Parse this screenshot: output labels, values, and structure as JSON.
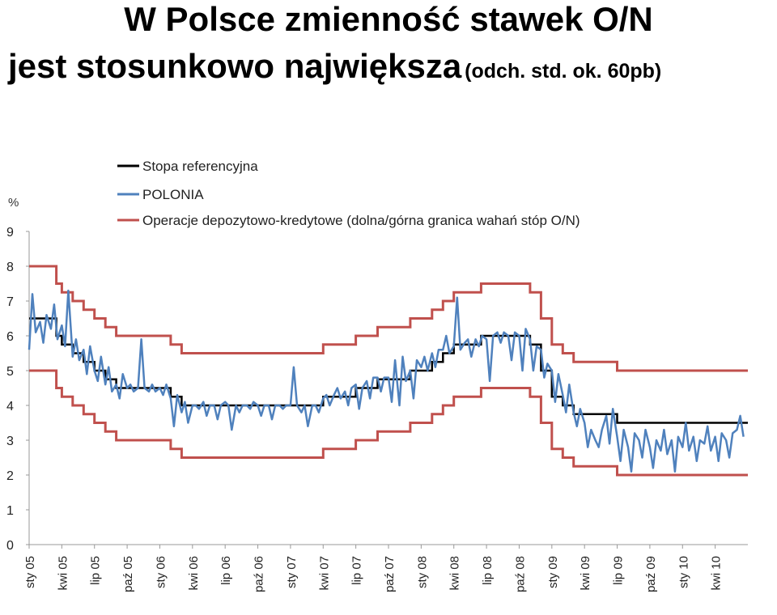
{
  "title": {
    "line1": "W Polsce zmienność stawek O/N",
    "line2": "jest stosunkowo największa",
    "line2_sub": "(odch. std. ok. 60pb)"
  },
  "colors": {
    "reference": "#000000",
    "polonia": "#4f81bd",
    "corridor": "#c0504d"
  },
  "chart_data": {
    "type": "line",
    "ylabel": "%",
    "ylim": [
      0,
      9
    ],
    "yticks": [
      "0",
      "1",
      "2",
      "3",
      "4",
      "5",
      "6",
      "7",
      "8",
      "9"
    ],
    "xticks": [
      "sty 05",
      "kwi 05",
      "lip 05",
      "paź 05",
      "sty 06",
      "kwi 06",
      "lip 06",
      "paź 06",
      "sty 07",
      "kwi 07",
      "lip 07",
      "paź 07",
      "sty 08",
      "kwi 08",
      "lip 08",
      "paź 08",
      "sty 09",
      "kwi 09",
      "lip 09",
      "paź 09",
      "sty 10",
      "kwi 10"
    ],
    "xtick_index": [
      0,
      3,
      6,
      9,
      12,
      15,
      18,
      21,
      24,
      27,
      30,
      33,
      36,
      39,
      42,
      45,
      48,
      51,
      54,
      57,
      60,
      63
    ],
    "xrange_months": [
      0,
      66
    ],
    "legend_position": "top",
    "series": [
      {
        "name": "Stopa referencyjna",
        "color_key": "reference",
        "style": "step",
        "points": [
          [
            0,
            6.5
          ],
          [
            2.5,
            6.0
          ],
          [
            3.0,
            5.75
          ],
          [
            4.0,
            5.5
          ],
          [
            5.0,
            5.25
          ],
          [
            6.0,
            5.0
          ],
          [
            7.0,
            4.75
          ],
          [
            8.0,
            4.5
          ],
          [
            13.0,
            4.25
          ],
          [
            14.0,
            4.0
          ],
          [
            27.0,
            4.25
          ],
          [
            30.0,
            4.5
          ],
          [
            32.0,
            4.75
          ],
          [
            35.0,
            5.0
          ],
          [
            37.0,
            5.25
          ],
          [
            38.0,
            5.5
          ],
          [
            39.0,
            5.75
          ],
          [
            41.5,
            6.0
          ],
          [
            46.0,
            5.75
          ],
          [
            47.0,
            5.0
          ],
          [
            48.0,
            4.25
          ],
          [
            49.0,
            4.0
          ],
          [
            50.0,
            3.75
          ],
          [
            54.0,
            3.5
          ],
          [
            66.0,
            3.5
          ]
        ]
      },
      {
        "name": "POLONIA",
        "color_key": "polonia",
        "style": "line",
        "points": [
          [
            0.0,
            5.6
          ],
          [
            0.3,
            7.2
          ],
          [
            0.6,
            6.1
          ],
          [
            1.0,
            6.4
          ],
          [
            1.3,
            5.8
          ],
          [
            1.6,
            6.6
          ],
          [
            2.0,
            6.2
          ],
          [
            2.3,
            6.9
          ],
          [
            2.6,
            5.9
          ],
          [
            3.0,
            6.3
          ],
          [
            3.3,
            5.7
          ],
          [
            3.6,
            7.3
          ],
          [
            4.0,
            5.4
          ],
          [
            4.3,
            5.9
          ],
          [
            4.6,
            5.3
          ],
          [
            5.0,
            5.6
          ],
          [
            5.3,
            4.9
          ],
          [
            5.6,
            5.7
          ],
          [
            6.0,
            5.0
          ],
          [
            6.3,
            4.7
          ],
          [
            6.6,
            5.4
          ],
          [
            7.0,
            4.6
          ],
          [
            7.3,
            5.1
          ],
          [
            7.6,
            4.4
          ],
          [
            8.0,
            4.6
          ],
          [
            8.3,
            4.2
          ],
          [
            8.6,
            4.9
          ],
          [
            9.0,
            4.5
          ],
          [
            9.3,
            4.6
          ],
          [
            9.6,
            4.4
          ],
          [
            10.0,
            4.5
          ],
          [
            10.3,
            5.9
          ],
          [
            10.6,
            4.5
          ],
          [
            11.0,
            4.4
          ],
          [
            11.3,
            4.6
          ],
          [
            11.6,
            4.4
          ],
          [
            12.0,
            4.5
          ],
          [
            12.3,
            4.3
          ],
          [
            12.6,
            4.6
          ],
          [
            13.0,
            4.2
          ],
          [
            13.3,
            3.4
          ],
          [
            13.6,
            4.3
          ],
          [
            14.0,
            3.8
          ],
          [
            14.3,
            4.1
          ],
          [
            14.6,
            3.5
          ],
          [
            15.0,
            4.0
          ],
          [
            15.3,
            4.0
          ],
          [
            15.6,
            3.9
          ],
          [
            16.0,
            4.1
          ],
          [
            16.3,
            3.7
          ],
          [
            16.6,
            4.0
          ],
          [
            17.0,
            4.0
          ],
          [
            17.3,
            3.6
          ],
          [
            17.6,
            4.0
          ],
          [
            18.0,
            4.1
          ],
          [
            18.3,
            4.0
          ],
          [
            18.6,
            3.3
          ],
          [
            19.0,
            4.0
          ],
          [
            19.3,
            3.8
          ],
          [
            19.6,
            4.0
          ],
          [
            20.0,
            4.0
          ],
          [
            20.3,
            3.9
          ],
          [
            20.6,
            4.1
          ],
          [
            21.0,
            4.0
          ],
          [
            21.3,
            3.7
          ],
          [
            21.6,
            4.0
          ],
          [
            22.0,
            4.0
          ],
          [
            22.3,
            3.6
          ],
          [
            22.6,
            4.0
          ],
          [
            23.0,
            4.0
          ],
          [
            23.3,
            3.9
          ],
          [
            23.6,
            4.0
          ],
          [
            24.0,
            4.0
          ],
          [
            24.3,
            5.1
          ],
          [
            24.6,
            4.0
          ],
          [
            25.0,
            3.8
          ],
          [
            25.3,
            4.0
          ],
          [
            25.6,
            3.4
          ],
          [
            26.0,
            4.0
          ],
          [
            26.3,
            4.0
          ],
          [
            26.6,
            3.8
          ],
          [
            27.0,
            4.2
          ],
          [
            27.3,
            4.3
          ],
          [
            27.6,
            4.0
          ],
          [
            28.0,
            4.3
          ],
          [
            28.3,
            4.5
          ],
          [
            28.6,
            4.2
          ],
          [
            29.0,
            4.4
          ],
          [
            29.3,
            4.0
          ],
          [
            29.6,
            4.5
          ],
          [
            30.0,
            4.6
          ],
          [
            30.3,
            3.9
          ],
          [
            30.6,
            4.5
          ],
          [
            31.0,
            4.7
          ],
          [
            31.3,
            4.2
          ],
          [
            31.6,
            4.8
          ],
          [
            32.0,
            4.8
          ],
          [
            32.3,
            4.4
          ],
          [
            32.6,
            4.8
          ],
          [
            33.0,
            4.8
          ],
          [
            33.3,
            4.1
          ],
          [
            33.6,
            5.3
          ],
          [
            34.0,
            4.0
          ],
          [
            34.3,
            5.4
          ],
          [
            34.6,
            4.7
          ],
          [
            35.0,
            5.0
          ],
          [
            35.3,
            4.2
          ],
          [
            35.6,
            5.3
          ],
          [
            36.0,
            5.1
          ],
          [
            36.3,
            5.4
          ],
          [
            36.6,
            5.0
          ],
          [
            37.0,
            5.5
          ],
          [
            37.3,
            5.1
          ],
          [
            37.6,
            5.6
          ],
          [
            38.0,
            5.6
          ],
          [
            38.3,
            6.0
          ],
          [
            38.6,
            5.5
          ],
          [
            39.0,
            5.7
          ],
          [
            39.3,
            7.1
          ],
          [
            39.6,
            5.6
          ],
          [
            40.0,
            5.8
          ],
          [
            40.3,
            5.9
          ],
          [
            40.6,
            5.4
          ],
          [
            41.0,
            5.9
          ],
          [
            41.3,
            5.7
          ],
          [
            41.6,
            6.0
          ],
          [
            42.0,
            5.9
          ],
          [
            42.3,
            4.7
          ],
          [
            42.6,
            6.0
          ],
          [
            43.0,
            6.1
          ],
          [
            43.3,
            5.8
          ],
          [
            43.6,
            6.1
          ],
          [
            44.0,
            6.0
          ],
          [
            44.3,
            5.3
          ],
          [
            44.6,
            6.1
          ],
          [
            45.0,
            6.0
          ],
          [
            45.3,
            5.0
          ],
          [
            45.6,
            6.2
          ],
          [
            46.0,
            5.9
          ],
          [
            46.3,
            5.0
          ],
          [
            46.6,
            5.7
          ],
          [
            47.0,
            5.6
          ],
          [
            47.3,
            4.8
          ],
          [
            47.6,
            5.2
          ],
          [
            48.0,
            5.0
          ],
          [
            48.3,
            4.1
          ],
          [
            48.6,
            4.9
          ],
          [
            49.0,
            4.3
          ],
          [
            49.3,
            3.8
          ],
          [
            49.6,
            4.6
          ],
          [
            50.0,
            3.8
          ],
          [
            50.3,
            3.4
          ],
          [
            50.6,
            3.9
          ],
          [
            51.0,
            3.5
          ],
          [
            51.3,
            2.8
          ],
          [
            51.6,
            3.3
          ],
          [
            52.0,
            3.0
          ],
          [
            52.3,
            2.8
          ],
          [
            52.6,
            3.3
          ],
          [
            53.0,
            3.7
          ],
          [
            53.3,
            2.9
          ],
          [
            53.6,
            3.9
          ],
          [
            54.0,
            3.1
          ],
          [
            54.3,
            2.4
          ],
          [
            54.6,
            3.3
          ],
          [
            55.0,
            2.8
          ],
          [
            55.3,
            2.1
          ],
          [
            55.6,
            3.2
          ],
          [
            56.0,
            3.0
          ],
          [
            56.3,
            2.5
          ],
          [
            56.6,
            3.3
          ],
          [
            57.0,
            2.8
          ],
          [
            57.3,
            2.2
          ],
          [
            57.6,
            3.0
          ],
          [
            58.0,
            2.7
          ],
          [
            58.3,
            3.3
          ],
          [
            58.6,
            2.6
          ],
          [
            59.0,
            3.0
          ],
          [
            59.3,
            2.1
          ],
          [
            59.6,
            3.1
          ],
          [
            60.0,
            2.8
          ],
          [
            60.3,
            3.5
          ],
          [
            60.6,
            2.7
          ],
          [
            61.0,
            3.1
          ],
          [
            61.3,
            2.4
          ],
          [
            61.6,
            3.0
          ],
          [
            62.0,
            2.9
          ],
          [
            62.3,
            3.4
          ],
          [
            62.6,
            2.7
          ],
          [
            63.0,
            3.1
          ],
          [
            63.3,
            2.4
          ],
          [
            63.6,
            3.2
          ],
          [
            64.0,
            3.0
          ],
          [
            64.3,
            2.5
          ],
          [
            64.6,
            3.2
          ],
          [
            65.0,
            3.3
          ],
          [
            65.3,
            3.7
          ],
          [
            65.6,
            3.1
          ]
        ]
      },
      {
        "name": "Operacje depozytowo-kredytowe (dolna/górna granica wahań stóp O/N)",
        "color_key": "corridor",
        "style": "step",
        "upper": [
          [
            0,
            8.0
          ],
          [
            2.5,
            7.5
          ],
          [
            3.0,
            7.25
          ],
          [
            4.0,
            7.0
          ],
          [
            5.0,
            6.75
          ],
          [
            6.0,
            6.5
          ],
          [
            7.0,
            6.25
          ],
          [
            8.0,
            6.0
          ],
          [
            13.0,
            5.75
          ],
          [
            14.0,
            5.5
          ],
          [
            27.0,
            5.75
          ],
          [
            30.0,
            6.0
          ],
          [
            32.0,
            6.25
          ],
          [
            35.0,
            6.5
          ],
          [
            37.0,
            6.75
          ],
          [
            38.0,
            7.0
          ],
          [
            39.0,
            7.25
          ],
          [
            41.5,
            7.5
          ],
          [
            46.0,
            7.25
          ],
          [
            47.0,
            6.5
          ],
          [
            48.0,
            5.75
          ],
          [
            49.0,
            5.5
          ],
          [
            50.0,
            5.25
          ],
          [
            54.0,
            5.0
          ],
          [
            66.0,
            5.0
          ]
        ],
        "lower": [
          [
            0,
            5.0
          ],
          [
            2.5,
            4.5
          ],
          [
            3.0,
            4.25
          ],
          [
            4.0,
            4.0
          ],
          [
            5.0,
            3.75
          ],
          [
            6.0,
            3.5
          ],
          [
            7.0,
            3.25
          ],
          [
            8.0,
            3.0
          ],
          [
            13.0,
            2.75
          ],
          [
            14.0,
            2.5
          ],
          [
            27.0,
            2.75
          ],
          [
            30.0,
            3.0
          ],
          [
            32.0,
            3.25
          ],
          [
            35.0,
            3.5
          ],
          [
            37.0,
            3.75
          ],
          [
            38.0,
            4.0
          ],
          [
            39.0,
            4.25
          ],
          [
            41.5,
            4.5
          ],
          [
            46.0,
            4.25
          ],
          [
            47.0,
            3.5
          ],
          [
            48.0,
            2.75
          ],
          [
            49.0,
            2.5
          ],
          [
            50.0,
            2.25
          ],
          [
            54.0,
            2.0
          ],
          [
            66.0,
            2.0
          ]
        ]
      }
    ]
  }
}
